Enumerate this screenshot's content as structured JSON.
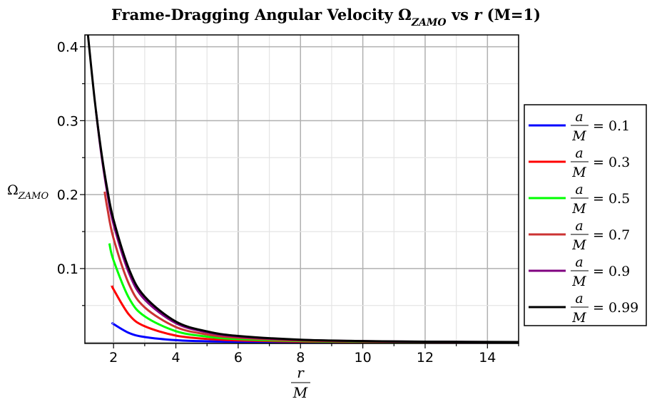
{
  "chart_data": {
    "type": "line",
    "title": "Frame-Dragging Angular Velocity Ω",
    "title_subscript": "ZAMO",
    "title_suffix_var": "r",
    "title_suffix": "(M=1)",
    "title_vs": "vs",
    "xlabel": {
      "num": "r",
      "den": "M"
    },
    "ylabel": {
      "main": "Ω",
      "sub": "ZAMO"
    },
    "xlim": [
      1.08,
      15
    ],
    "ylim": [
      -0.0013,
      0.416
    ],
    "x_ticks": [
      "2",
      "4",
      "6",
      "8",
      "10",
      "12",
      "14"
    ],
    "x_tick_values": [
      2,
      4,
      6,
      8,
      10,
      12,
      14
    ],
    "y_ticks": [
      "0.1",
      "0.2",
      "0.3",
      "0.4"
    ],
    "y_tick_values": [
      0.1,
      0.2,
      0.3,
      0.4
    ],
    "grid": true,
    "legend_position": "right",
    "legend_label": {
      "num": "a",
      "den": "M",
      "eq": "="
    },
    "series": [
      {
        "name": "0.1",
        "color": "#0000ff",
        "x": [
          1.995,
          2,
          2.5,
          3,
          4,
          5,
          6,
          8,
          10,
          12,
          15
        ],
        "y": [
          0.0251,
          0.0249,
          0.0128,
          0.00739,
          0.00312,
          0.0016,
          0.000926,
          0.000391,
          0.0002,
          0.000116,
          5.93e-05
        ]
      },
      {
        "name": "0.3",
        "color": "#ff0000",
        "x": [
          1.954,
          2,
          2.5,
          3,
          4,
          5,
          6,
          8,
          10,
          12,
          15
        ],
        "y": [
          0.0768,
          0.0718,
          0.0374,
          0.0219,
          0.0093,
          0.00478,
          0.00277,
          0.00117,
          0.000599,
          0.000347,
          0.000178
        ]
      },
      {
        "name": "0.5",
        "color": "#00ff00",
        "x": [
          1.866,
          2,
          2.5,
          3,
          4,
          5,
          6,
          8,
          10,
          12,
          15
        ],
        "y": [
          0.134,
          0.111,
          0.0597,
          0.0354,
          0.0153,
          0.00789,
          0.00459,
          0.00194,
          0.000997,
          0.000578,
          0.000296
        ]
      },
      {
        "name": "0.7",
        "color": "#cc3333",
        "x": [
          1.714,
          1.8,
          2,
          2.5,
          3,
          4,
          5,
          6,
          8,
          10,
          12,
          15
        ],
        "y": [
          0.204,
          0.182,
          0.1406,
          0.0785,
          0.0475,
          0.0209,
          0.0109,
          0.00637,
          0.00271,
          0.00139,
          0.000807,
          0.000414
        ]
      },
      {
        "name": "0.9",
        "color": "#800080",
        "x": [
          1.436,
          1.6,
          1.8,
          2,
          2.5,
          3,
          4,
          5,
          6,
          8,
          10,
          12,
          15
        ],
        "y": [
          0.313,
          0.257,
          0.202,
          0.16,
          0.0934,
          0.058,
          0.0261,
          0.0138,
          0.00809,
          0.00346,
          0.00178,
          0.00103,
          0.000531
        ]
      },
      {
        "name": "0.99",
        "color": "#000000",
        "x": [
          1.141,
          1.2,
          1.4,
          1.6,
          1.8,
          2,
          2.5,
          3,
          4,
          5,
          6,
          8,
          10,
          12,
          15
        ],
        "y": [
          0.434,
          0.407,
          0.326,
          0.26,
          0.207,
          0.166,
          0.0988,
          0.0621,
          0.0283,
          0.015,
          0.00885,
          0.00379,
          0.00196,
          0.00114,
          0.000584
        ]
      }
    ]
  }
}
